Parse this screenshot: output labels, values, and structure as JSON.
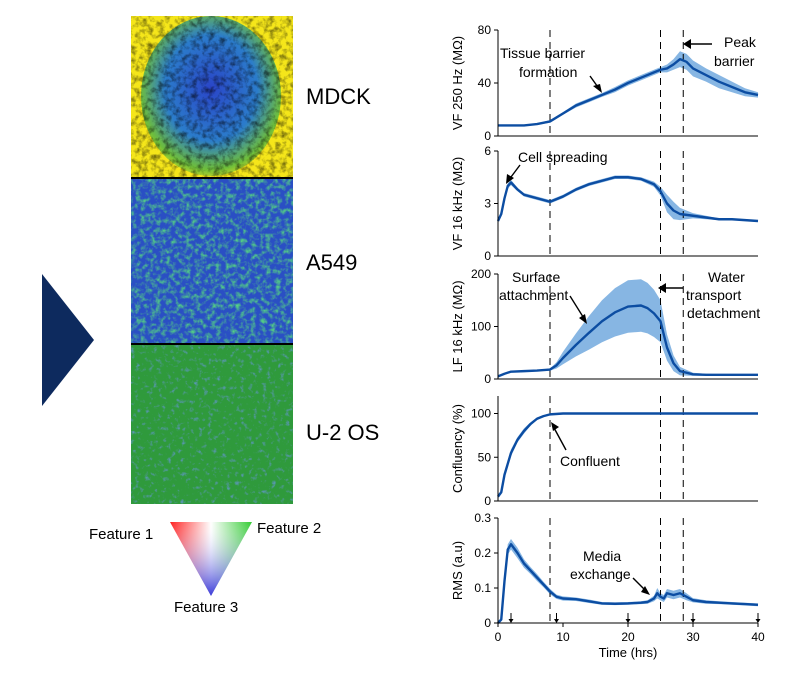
{
  "images": {
    "labels": [
      "MDCK",
      "A549",
      "U-2 OS"
    ]
  },
  "legend_triangle": {
    "feature1": "Feature 1",
    "feature2": "Feature 2",
    "feature3": "Feature 3"
  },
  "chart_data": [
    {
      "type": "line",
      "ylabel": "VF 250 Hz (MΩ)",
      "ylim": [
        0,
        80
      ],
      "yticks": [
        0,
        40,
        80
      ],
      "xlim": [
        0,
        40
      ],
      "x": [
        0,
        2,
        4,
        6,
        8,
        10,
        12,
        14,
        16,
        18,
        20,
        22,
        24,
        25,
        26,
        27,
        28,
        29,
        30,
        32,
        34,
        36,
        38,
        40
      ],
      "y": [
        8,
        8,
        8,
        9,
        11,
        17,
        23,
        27,
        31,
        35,
        40,
        44,
        48,
        50,
        51,
        54,
        58,
        56,
        51,
        46,
        41,
        37,
        33,
        31
      ],
      "band": [
        0,
        0,
        0,
        0.5,
        1,
        1,
        1.5,
        1.5,
        1.5,
        2,
        2,
        2,
        2,
        2,
        3,
        4,
        6,
        6,
        6,
        5,
        5,
        4,
        3,
        2
      ],
      "vlines": [
        8,
        25,
        28.5
      ],
      "annotations": [
        "Tissue barrier",
        "formation",
        "Peak",
        "barrier"
      ]
    },
    {
      "type": "line",
      "ylabel": "VF 16 kHz (MΩ)",
      "ylim": [
        0,
        6
      ],
      "yticks": [
        0,
        3,
        6
      ],
      "xlim": [
        0,
        40
      ],
      "x": [
        0,
        0.5,
        1,
        1.5,
        2,
        3,
        4,
        6,
        8,
        10,
        12,
        14,
        16,
        18,
        20,
        22,
        24,
        25,
        26,
        27,
        28,
        30,
        32,
        34,
        36,
        38,
        40
      ],
      "y": [
        2.0,
        2.4,
        3.3,
        4.0,
        4.2,
        3.8,
        3.5,
        3.3,
        3.1,
        3.4,
        3.8,
        4.1,
        4.3,
        4.5,
        4.5,
        4.4,
        4.1,
        3.7,
        3.0,
        2.6,
        2.4,
        2.3,
        2.2,
        2.1,
        2.1,
        2.05,
        2.0
      ],
      "band": [
        0,
        0.05,
        0.1,
        0.15,
        0.15,
        0.1,
        0.1,
        0.1,
        0.1,
        0.1,
        0.1,
        0.1,
        0.1,
        0.1,
        0.1,
        0.1,
        0.15,
        0.25,
        0.5,
        0.5,
        0.35,
        0.15,
        0.1,
        0.05,
        0.05,
        0.05,
        0.05
      ],
      "vlines": [
        8,
        25,
        28.5
      ],
      "annotations": [
        "Cell spreading"
      ]
    },
    {
      "type": "line",
      "ylabel": "LF 16 kHz (MΩ)",
      "ylim": [
        0,
        200
      ],
      "yticks": [
        0,
        100,
        200
      ],
      "xlim": [
        0,
        40
      ],
      "x": [
        0,
        1,
        2,
        4,
        6,
        8,
        9,
        10,
        12,
        14,
        16,
        18,
        20,
        22,
        23,
        24,
        25,
        26,
        27,
        28,
        30,
        32,
        34,
        36,
        38,
        40
      ],
      "y": [
        5,
        10,
        14,
        15,
        16,
        18,
        26,
        40,
        65,
        88,
        110,
        127,
        138,
        140,
        135,
        125,
        110,
        60,
        30,
        15,
        9,
        8,
        8,
        8,
        8,
        8
      ],
      "band": [
        0,
        1,
        1,
        1,
        1,
        2,
        6,
        12,
        22,
        32,
        40,
        46,
        50,
        50,
        48,
        45,
        40,
        25,
        15,
        8,
        3,
        2,
        1,
        1,
        1,
        1
      ],
      "vlines": [
        8,
        25,
        28.5
      ],
      "annotations": [
        "Surface",
        "attachment",
        "Water",
        "transport",
        "detachment"
      ]
    },
    {
      "type": "line",
      "ylabel": "Confluency (%)",
      "ylim": [
        0,
        120
      ],
      "yticks": [
        0,
        50,
        100
      ],
      "xlim": [
        0,
        40
      ],
      "x": [
        0,
        0.5,
        1,
        2,
        3,
        4,
        5,
        6,
        7,
        8,
        10,
        12,
        16,
        20,
        25,
        30,
        35,
        40
      ],
      "y": [
        5,
        10,
        30,
        55,
        70,
        80,
        88,
        94,
        97,
        99,
        100,
        100,
        100,
        100,
        100,
        100,
        100,
        100
      ],
      "band": [
        0,
        1,
        3,
        4,
        3,
        3,
        2,
        1.5,
        1,
        0.5,
        0,
        0,
        0,
        0,
        0,
        0,
        0,
        0
      ],
      "vlines": [
        8,
        25,
        28.5
      ],
      "annotations": [
        "Confluent"
      ]
    },
    {
      "type": "line",
      "ylabel": "RMS (a.u)",
      "xlabel": "Time (hrs)",
      "ylim": [
        0,
        0.3
      ],
      "yticks": [
        0,
        0.1,
        0.2,
        0.3
      ],
      "xlim": [
        0,
        40
      ],
      "xticks": [
        0,
        10,
        20,
        30,
        40
      ],
      "x": [
        0,
        0.5,
        1,
        1.5,
        2,
        3,
        4,
        5,
        6,
        7,
        8,
        9,
        10,
        12,
        14,
        16,
        18,
        20,
        22,
        23,
        24,
        24.5,
        25,
        25.5,
        26,
        27,
        28,
        29,
        30,
        32,
        34,
        36,
        38,
        40
      ],
      "y": [
        0.0,
        0.01,
        0.12,
        0.21,
        0.225,
        0.2,
        0.17,
        0.15,
        0.13,
        0.11,
        0.09,
        0.075,
        0.07,
        0.068,
        0.062,
        0.056,
        0.055,
        0.056,
        0.058,
        0.06,
        0.07,
        0.085,
        0.075,
        0.07,
        0.085,
        0.08,
        0.085,
        0.075,
        0.065,
        0.06,
        0.058,
        0.056,
        0.054,
        0.052
      ],
      "band": [
        0,
        0.005,
        0.01,
        0.015,
        0.015,
        0.015,
        0.012,
        0.01,
        0.01,
        0.008,
        0.008,
        0.006,
        0.006,
        0.005,
        0.005,
        0.004,
        0.004,
        0.004,
        0.004,
        0.005,
        0.008,
        0.015,
        0.01,
        0.01,
        0.012,
        0.012,
        0.012,
        0.01,
        0.006,
        0.005,
        0.004,
        0.004,
        0.004,
        0.004
      ],
      "vlines": [
        8,
        25,
        28.5
      ],
      "event_marks": [
        2,
        9,
        20,
        30,
        40
      ],
      "annotations": [
        "Media",
        "exchange"
      ]
    }
  ],
  "colors": {
    "line": "#0c4da2",
    "band": "#7aaee0",
    "arrow": "#0d2a5e"
  }
}
